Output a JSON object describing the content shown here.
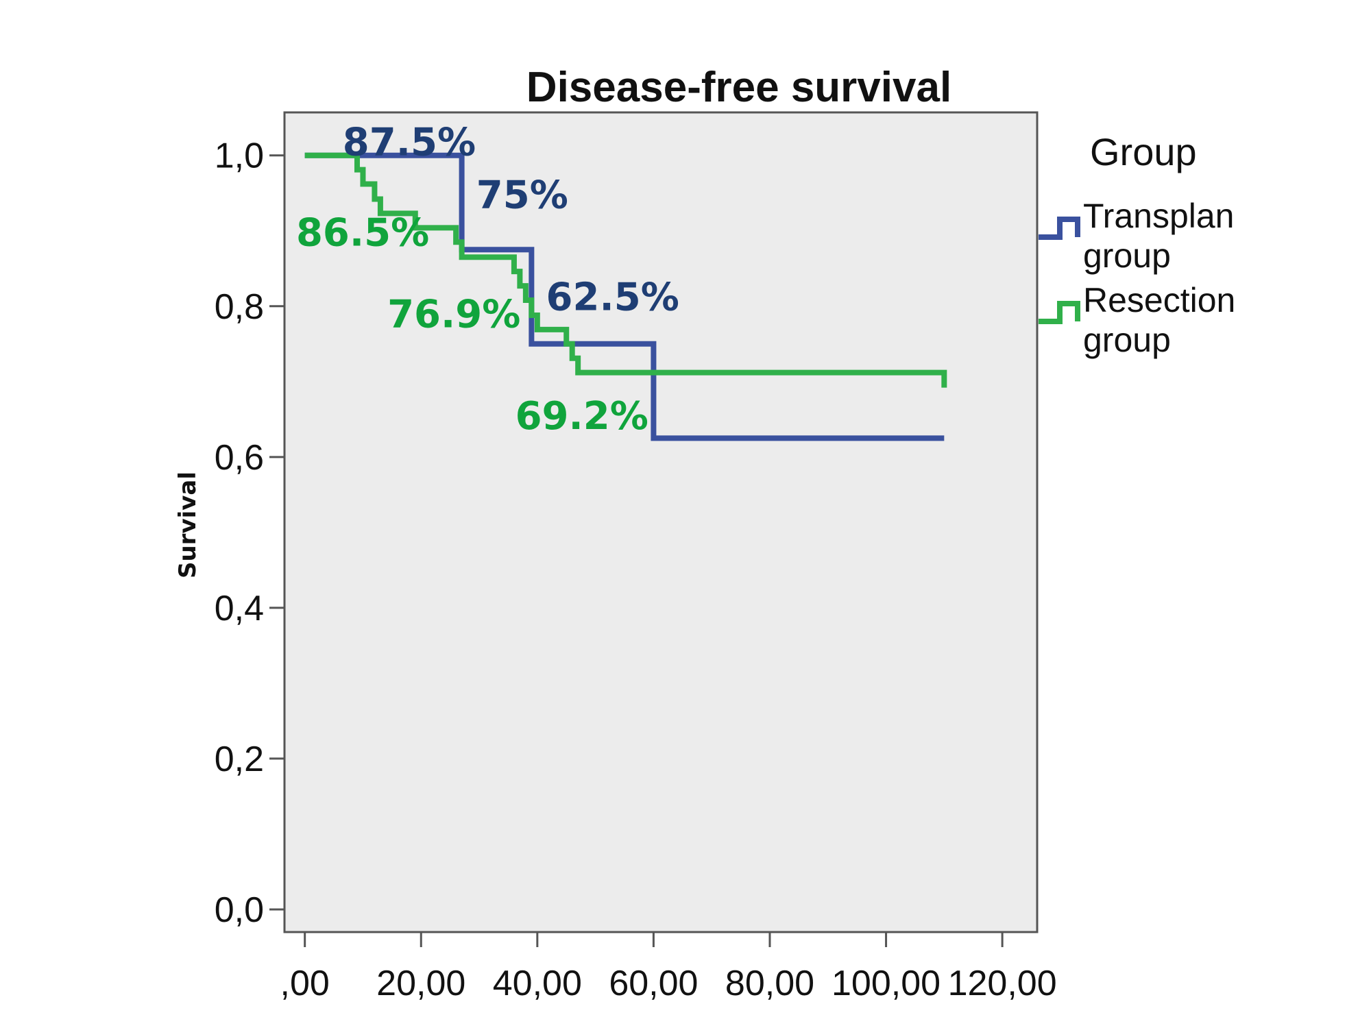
{
  "colors": {
    "transplant": "#3a519e",
    "resection": "#30b04a",
    "annotation_blue": "#1f3e74",
    "annotation_green": "#10a43c",
    "plot_bg": "#ececec",
    "frame": "#555555"
  },
  "chart_data": {
    "type": "line",
    "subtype": "kaplan-meier step",
    "title": "Disease-free survival",
    "xlabel": "",
    "ylabel": "Survival",
    "xlim": [
      -3.5,
      126
    ],
    "ylim": [
      -0.03,
      1.057
    ],
    "x_ticks": [
      0,
      20,
      40,
      60,
      80,
      100,
      120
    ],
    "x_tick_labels": [
      ",00",
      "20,00",
      "40,00",
      "60,00",
      "80,00",
      "100,00",
      "120,00"
    ],
    "y_ticks": [
      0,
      0.2,
      0.4,
      0.6,
      0.8,
      1.0
    ],
    "y_tick_labels": [
      "0,0",
      "0,2",
      "0,4",
      "0,6",
      "0,8",
      "1,0"
    ],
    "grid": false,
    "legend": {
      "title": "Group",
      "placement": "right"
    },
    "series": [
      {
        "name": "Transplan group",
        "legend_lines": [
          "Transplan",
          "group"
        ],
        "color_key": "transplant",
        "x": [
          0,
          27,
          39,
          60,
          110
        ],
        "y": [
          1.0,
          0.875,
          0.75,
          0.625,
          0.625
        ]
      },
      {
        "name": "Resection group",
        "legend_lines": [
          "Resection",
          "group"
        ],
        "color_key": "resection",
        "x": [
          0,
          9,
          10,
          12,
          13,
          19,
          26,
          27,
          31,
          36,
          37,
          38,
          39,
          40,
          45,
          46,
          47,
          110
        ],
        "y": [
          1.0,
          0.981,
          0.962,
          0.942,
          0.923,
          0.904,
          0.885,
          0.865,
          0.865,
          0.846,
          0.827,
          0.808,
          0.788,
          0.769,
          0.75,
          0.731,
          0.712,
          0.692
        ]
      }
    ],
    "annotations": [
      {
        "text": "87.5%",
        "x": 6.5,
        "y": 1.0,
        "color_key": "annotation_blue"
      },
      {
        "text": "75%",
        "x": 29.5,
        "y": 0.93,
        "color_key": "annotation_blue"
      },
      {
        "text": "86.5%",
        "x": -1.5,
        "y": 0.88,
        "color_key": "annotation_green"
      },
      {
        "text": "62.5%",
        "x": 41.5,
        "y": 0.795,
        "color_key": "annotation_blue"
      },
      {
        "text": "76.9%",
        "x": 14.2,
        "y": 0.772,
        "color_key": "annotation_green"
      },
      {
        "text": "69.2%",
        "x": 36.2,
        "y": 0.637,
        "color_key": "annotation_green"
      }
    ]
  }
}
